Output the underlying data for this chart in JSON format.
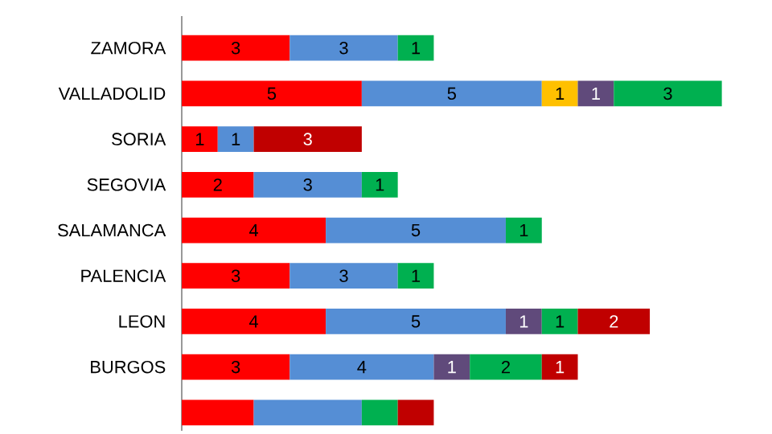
{
  "chart_data": {
    "type": "bar",
    "orientation": "horizontal",
    "stacked": true,
    "tick_labels": "y",
    "categories": [
      "ZAMORA",
      "VALLADOLID",
      "SORIA",
      "SEGOVIA",
      "SALAMANCA",
      "PALENCIA",
      "LEON",
      "BURGOS",
      null
    ],
    "series": [
      {
        "color": "#ff0000",
        "values": [
          3,
          5,
          1,
          2,
          4,
          3,
          4,
          3,
          2
        ],
        "value_labels": [
          "3",
          "5",
          "1",
          "2",
          "4",
          "3",
          "4",
          "3",
          null
        ]
      },
      {
        "color": "#558ed5",
        "values": [
          3,
          5,
          1,
          3,
          5,
          3,
          5,
          4,
          3
        ],
        "value_labels": [
          "3",
          "5",
          "1",
          "3",
          "5",
          "3",
          "5",
          "4",
          null
        ]
      },
      {
        "color": "#ffc000",
        "values": [
          null,
          1,
          null,
          null,
          null,
          null,
          null,
          null,
          null
        ],
        "value_labels": [
          null,
          "1",
          null,
          null,
          null,
          null,
          null,
          null,
          null
        ]
      },
      {
        "color": "#604a7b",
        "values": [
          null,
          1,
          null,
          null,
          null,
          null,
          1,
          1,
          null
        ],
        "value_labels": [
          null,
          "1",
          null,
          null,
          null,
          null,
          "1",
          "1",
          null
        ]
      },
      {
        "color": "#00b050",
        "values": [
          1,
          3,
          null,
          1,
          1,
          1,
          1,
          2,
          1
        ],
        "value_labels": [
          "1",
          "3",
          null,
          "1",
          "1",
          "1",
          "1",
          "2",
          null
        ]
      },
      {
        "color": "#c00000",
        "values": [
          null,
          null,
          3,
          null,
          null,
          null,
          2,
          1,
          1
        ],
        "value_labels": [
          null,
          null,
          "3",
          null,
          null,
          null,
          "2",
          "1",
          null
        ]
      }
    ]
  }
}
